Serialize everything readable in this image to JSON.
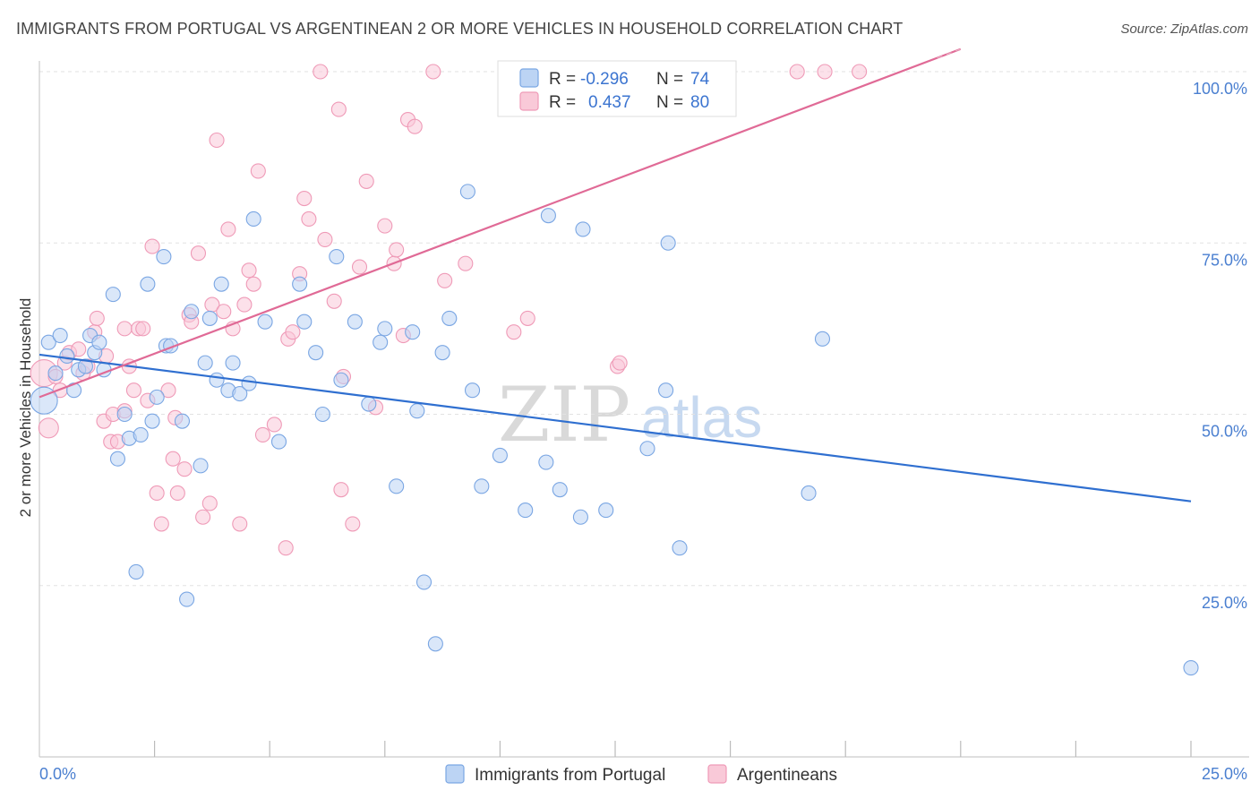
{
  "title": "IMMIGRANTS FROM PORTUGAL VS ARGENTINEAN 2 OR MORE VEHICLES IN HOUSEHOLD CORRELATION CHART",
  "source": "Source: ZipAtlas.com",
  "watermark": {
    "zip": "ZIP",
    "atlas": "atlas"
  },
  "legend": {
    "rows": [
      {
        "r_label": "R =",
        "r_value": "-0.296",
        "n_label": "N =",
        "n_value": "74"
      },
      {
        "r_label": "R =",
        "r_value": "0.437",
        "n_label": "N =",
        "n_value": "80"
      }
    ]
  },
  "chart_data": {
    "type": "scatter",
    "ylabel": "2 or more Vehicles in Household",
    "xlim": [
      0,
      25
    ],
    "ylim": [
      0,
      100
    ],
    "x_tick_labels": [
      "0.0%",
      "25.0%"
    ],
    "y_ticks": [
      25,
      50,
      75,
      100
    ],
    "y_tick_labels": [
      "25.0%",
      "50.0%",
      "75.0%",
      "100.0%"
    ],
    "grid": true,
    "colors": {
      "blue": "#6f9fe0",
      "pink": "#f09ab6",
      "blue_line": "#2f6fd0",
      "pink_line": "#e06a96"
    },
    "series": [
      {
        "name": "Immigrants from Portugal",
        "color": "#6f9fe0",
        "trend": {
          "x": [
            0,
            25
          ],
          "y": [
            58.7,
            37.3
          ]
        },
        "points": [
          [
            0.1,
            52,
            8
          ],
          [
            0.2,
            60.5,
            3
          ],
          [
            0.35,
            56,
            3
          ],
          [
            0.45,
            61.5,
            3
          ],
          [
            0.6,
            58.5,
            3
          ],
          [
            0.75,
            53.5,
            3
          ],
          [
            0.85,
            56.5,
            3
          ],
          [
            1.0,
            57,
            3
          ],
          [
            1.1,
            61.5,
            3
          ],
          [
            1.2,
            59,
            3
          ],
          [
            1.3,
            60.5,
            3
          ],
          [
            1.4,
            56.5,
            3
          ],
          [
            1.6,
            67.5,
            3
          ],
          [
            1.7,
            43.5,
            3
          ],
          [
            1.85,
            50,
            3
          ],
          [
            1.95,
            46.5,
            3
          ],
          [
            2.1,
            27,
            3
          ],
          [
            2.2,
            47,
            3
          ],
          [
            2.35,
            69,
            3
          ],
          [
            2.45,
            49,
            3
          ],
          [
            2.55,
            52.5,
            3
          ],
          [
            2.7,
            73,
            3
          ],
          [
            2.75,
            60,
            3
          ],
          [
            2.85,
            60,
            3
          ],
          [
            3.1,
            49,
            3
          ],
          [
            3.2,
            23,
            3
          ],
          [
            3.3,
            65,
            3
          ],
          [
            3.5,
            42.5,
            3
          ],
          [
            3.6,
            57.5,
            3
          ],
          [
            3.7,
            64,
            3
          ],
          [
            3.85,
            55,
            3
          ],
          [
            3.95,
            69,
            3
          ],
          [
            4.1,
            53.5,
            3
          ],
          [
            4.2,
            57.5,
            3
          ],
          [
            4.35,
            53,
            3
          ],
          [
            4.55,
            54.5,
            3
          ],
          [
            4.65,
            78.5,
            3
          ],
          [
            4.9,
            63.5,
            3
          ],
          [
            5.2,
            46,
            3
          ],
          [
            5.65,
            69,
            3
          ],
          [
            5.75,
            63.5,
            3
          ],
          [
            6.0,
            59,
            3
          ],
          [
            6.15,
            50,
            3
          ],
          [
            6.45,
            73,
            3
          ],
          [
            6.55,
            55,
            3
          ],
          [
            6.85,
            63.5,
            3
          ],
          [
            7.15,
            51.5,
            3
          ],
          [
            7.4,
            60.5,
            3
          ],
          [
            7.5,
            62.5,
            3
          ],
          [
            7.75,
            39.5,
            3
          ],
          [
            8.1,
            62,
            3
          ],
          [
            8.2,
            50.5,
            3
          ],
          [
            8.35,
            25.5,
            3
          ],
          [
            8.6,
            16.5,
            3
          ],
          [
            8.75,
            59,
            3
          ],
          [
            8.9,
            64,
            3
          ],
          [
            9.3,
            82.5,
            3
          ],
          [
            9.4,
            53.5,
            3
          ],
          [
            9.6,
            39.5,
            3
          ],
          [
            10.0,
            44,
            3
          ],
          [
            10.55,
            36,
            3
          ],
          [
            11.0,
            43,
            3
          ],
          [
            11.05,
            79,
            3
          ],
          [
            11.3,
            39,
            3
          ],
          [
            11.75,
            35,
            3
          ],
          [
            11.8,
            77,
            3
          ],
          [
            12.3,
            36,
            3
          ],
          [
            13.2,
            45,
            3
          ],
          [
            13.6,
            53.5,
            3
          ],
          [
            13.65,
            75,
            3
          ],
          [
            13.9,
            30.5,
            3
          ],
          [
            16.7,
            38.5,
            3
          ],
          [
            17.0,
            61,
            3
          ],
          [
            25.0,
            13,
            3
          ]
        ]
      },
      {
        "name": "Argentineans",
        "color": "#f09ab6",
        "trend": {
          "x": [
            0,
            25
          ],
          "y": [
            52.5,
            116
          ]
        },
        "trend_solid_to": 20,
        "points": [
          [
            0.1,
            56,
            5
          ],
          [
            0.2,
            48,
            4
          ],
          [
            0.35,
            55.5,
            3
          ],
          [
            0.45,
            53.5,
            3
          ],
          [
            0.55,
            57.5,
            3
          ],
          [
            0.65,
            59,
            3
          ],
          [
            0.85,
            59.5,
            3
          ],
          [
            0.95,
            56,
            3
          ],
          [
            1.05,
            57,
            3
          ],
          [
            1.2,
            62,
            3
          ],
          [
            1.25,
            64,
            3
          ],
          [
            1.4,
            49,
            3
          ],
          [
            1.45,
            58.5,
            3
          ],
          [
            1.55,
            46,
            3
          ],
          [
            1.6,
            50,
            3
          ],
          [
            1.7,
            46,
            3
          ],
          [
            1.85,
            50.5,
            3
          ],
          [
            1.85,
            62.5,
            3
          ],
          [
            1.95,
            57,
            3
          ],
          [
            2.05,
            53.5,
            3
          ],
          [
            2.15,
            62.5,
            3
          ],
          [
            2.25,
            62.5,
            3
          ],
          [
            2.35,
            52,
            3
          ],
          [
            2.45,
            74.5,
            3
          ],
          [
            2.55,
            38.5,
            3
          ],
          [
            2.65,
            34,
            3
          ],
          [
            2.8,
            53.5,
            3
          ],
          [
            2.9,
            43.5,
            3
          ],
          [
            2.95,
            49.5,
            3
          ],
          [
            3.0,
            38.5,
            3
          ],
          [
            3.15,
            42,
            3
          ],
          [
            3.25,
            64.5,
            3
          ],
          [
            3.3,
            63.5,
            3
          ],
          [
            3.45,
            73.5,
            3
          ],
          [
            3.55,
            35,
            3
          ],
          [
            3.7,
            37,
            3
          ],
          [
            3.75,
            66,
            3
          ],
          [
            3.85,
            90,
            3
          ],
          [
            4.0,
            65,
            3
          ],
          [
            4.1,
            77,
            3
          ],
          [
            4.2,
            62.5,
            3
          ],
          [
            4.35,
            34,
            3
          ],
          [
            4.45,
            66,
            3
          ],
          [
            4.55,
            71,
            3
          ],
          [
            4.65,
            69,
            3
          ],
          [
            4.75,
            85.5,
            3
          ],
          [
            4.85,
            47,
            3
          ],
          [
            5.1,
            48.5,
            3
          ],
          [
            5.35,
            30.5,
            3
          ],
          [
            5.4,
            61,
            3
          ],
          [
            5.5,
            62,
            3
          ],
          [
            5.65,
            70.5,
            3
          ],
          [
            5.75,
            81.5,
            3
          ],
          [
            5.85,
            78.5,
            3
          ],
          [
            6.1,
            100,
            3
          ],
          [
            6.2,
            75.5,
            3
          ],
          [
            6.4,
            66.5,
            3
          ],
          [
            6.5,
            94.5,
            3
          ],
          [
            6.55,
            39,
            3
          ],
          [
            6.6,
            55.5,
            3
          ],
          [
            6.8,
            34,
            3
          ],
          [
            6.95,
            71.5,
            3
          ],
          [
            7.1,
            84,
            3
          ],
          [
            7.3,
            51,
            3
          ],
          [
            7.5,
            77.5,
            3
          ],
          [
            7.7,
            72,
            3
          ],
          [
            7.75,
            74,
            3
          ],
          [
            7.9,
            61.5,
            3
          ],
          [
            8.0,
            93,
            3
          ],
          [
            8.15,
            92,
            3
          ],
          [
            8.55,
            100,
            3
          ],
          [
            8.8,
            69.5,
            3
          ],
          [
            9.25,
            72,
            3
          ],
          [
            10.3,
            62,
            3
          ],
          [
            10.6,
            64,
            3
          ],
          [
            12.55,
            57,
            3
          ],
          [
            12.6,
            57.5,
            3
          ],
          [
            16.45,
            100,
            3
          ],
          [
            17.05,
            100,
            3
          ],
          [
            17.8,
            100,
            3
          ]
        ]
      }
    ]
  }
}
